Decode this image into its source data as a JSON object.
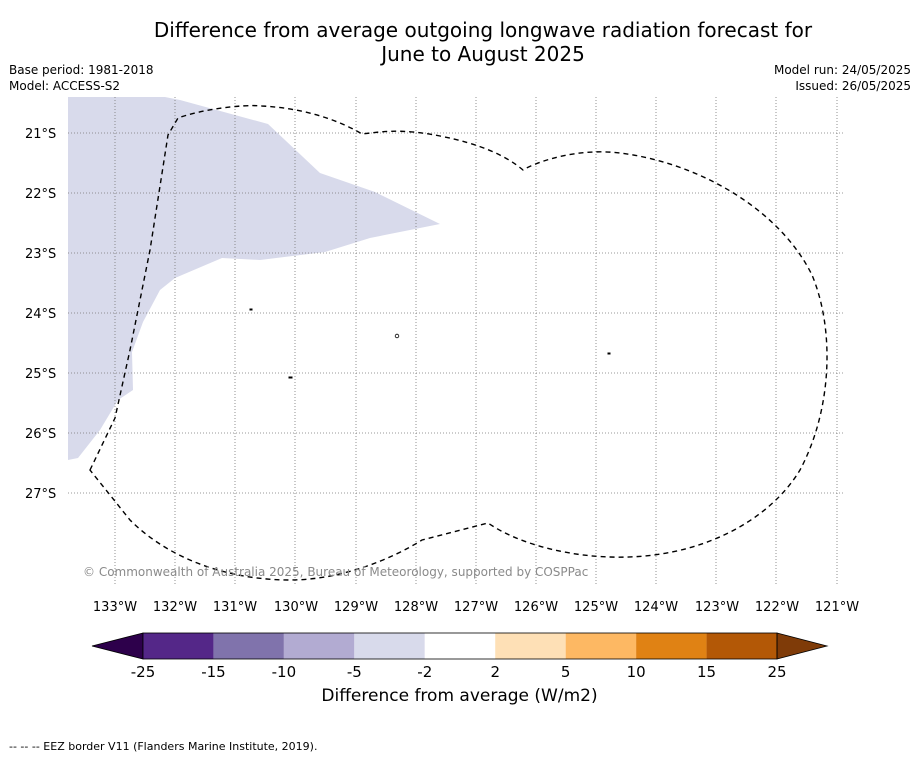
{
  "title_line1": "Difference from average outgoing longwave radiation forecast for",
  "title_line2": "June to August 2025",
  "base_period": "Base period: 1981-2018",
  "model": "Model: ACCESS-S2",
  "model_run": "Model run: 24/05/2025",
  "issued": "Issued: 26/05/2025",
  "lat_labels": [
    "21°S",
    "22°S",
    "23°S",
    "24°S",
    "25°S",
    "26°S",
    "27°S"
  ],
  "lon_labels": [
    "133°W",
    "132°W",
    "131°W",
    "130°W",
    "129°W",
    "128°W",
    "127°W",
    "126°W",
    "125°W",
    "124°W",
    "123°W",
    "122°W",
    "121°W"
  ],
  "copyright": "© Commonwealth of Australia 2025, Bureau of Meteorology, supported by COSPPac",
  "colorbar": {
    "ticks": [
      "-25",
      "-15",
      "-10",
      "-5",
      "-2",
      "2",
      "5",
      "10",
      "15",
      "25"
    ],
    "colors": [
      "#2d004b",
      "#542788",
      "#8073ac",
      "#b2abd2",
      "#d8daeb",
      "#ffffff",
      "#fee0b6",
      "#fdb863",
      "#e08214",
      "#b35806",
      "#7f3b08"
    ],
    "title": "Difference from average (W/m2)"
  },
  "footnote": "--  --  -- EEZ border V11 (Flanders Marine Institute, 2019)."
}
